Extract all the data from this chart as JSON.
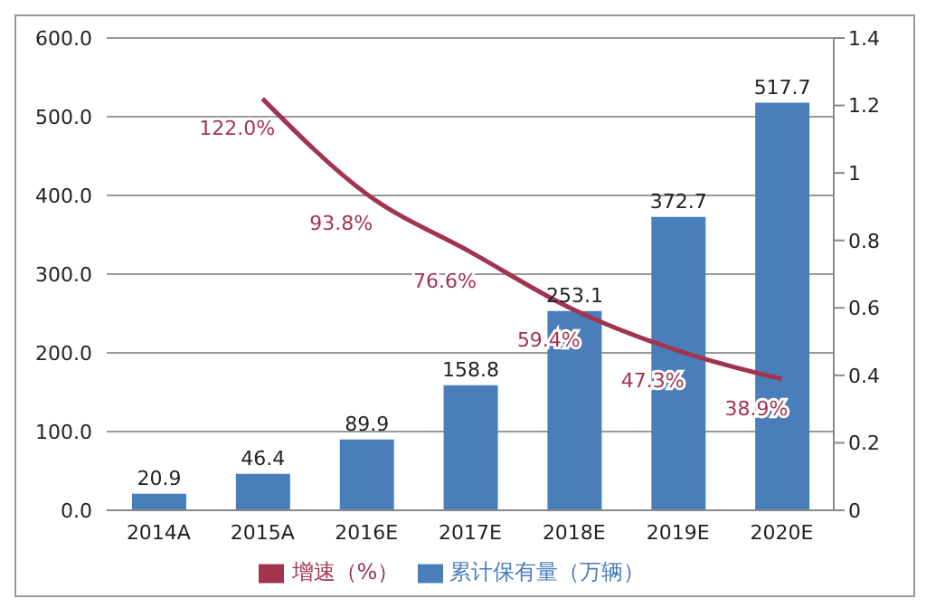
{
  "chart_data": {
    "type": "bar",
    "categories": [
      "2014A",
      "2015A",
      "2016E",
      "2017E",
      "2018E",
      "2019E",
      "2020E"
    ],
    "series": [
      {
        "name": "累计保有量（万辆）",
        "color": "#4a7ebb",
        "values": [
          20.9,
          46.4,
          89.9,
          158.8,
          253.1,
          372.7,
          517.7
        ]
      },
      {
        "name": "增速（%）",
        "type": "line",
        "axis": "y2",
        "color": "#a3344f",
        "values": [
          null,
          1.22,
          0.938,
          0.766,
          0.594,
          0.473,
          0.389
        ],
        "value_labels": [
          null,
          "122.0%",
          "93.8%",
          "76.6%",
          "59.4%",
          "47.3%",
          "38.9%"
        ]
      }
    ],
    "data_labels": true,
    "ylim": [
      0,
      600
    ],
    "yticks": [
      {
        "value": 0,
        "label": "0.0"
      },
      {
        "value": 100,
        "label": "100.0"
      },
      {
        "value": 200,
        "label": "200.0"
      },
      {
        "value": 300,
        "label": "300.0"
      },
      {
        "value": 400,
        "label": "400.0"
      },
      {
        "value": 500,
        "label": "500.0"
      },
      {
        "value": 600,
        "label": "600.0"
      }
    ],
    "y2lim": [
      0,
      1.4
    ],
    "y2ticks": [
      0,
      0.2,
      0.4,
      0.6,
      0.8,
      1,
      1.2,
      1.4
    ],
    "grid": "y",
    "legend": "bottom",
    "marker": "none",
    "line_style": "solid"
  }
}
